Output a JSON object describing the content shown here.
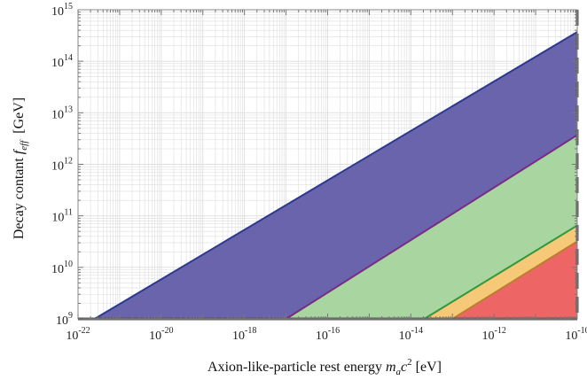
{
  "chart_data": {
    "type": "area",
    "title": "",
    "xlabel": {
      "prefix": "Axion-like-particle rest energy ",
      "symbol": "m",
      "symbol_sub": "a",
      "symbol_tail": "c",
      "symbol_sup": "2",
      "unit": " [eV]"
    },
    "ylabel": {
      "prefix": "Decay contant ",
      "symbol": "f",
      "symbol_sub": "eff",
      "unit": "  [GeV]"
    },
    "x_scale": "log",
    "y_scale": "log",
    "xlim": [
      1e-22,
      1e-10
    ],
    "ylim": [
      1000000000.0,
      1000000000000000.0
    ],
    "x_ticks": [
      {
        "base": "10",
        "exp": "-22",
        "value": 1e-22
      },
      {
        "base": "10",
        "exp": "-20",
        "value": 1e-20
      },
      {
        "base": "10",
        "exp": "-18",
        "value": 1e-18
      },
      {
        "base": "10",
        "exp": "-16",
        "value": 1e-16
      },
      {
        "base": "10",
        "exp": "-14",
        "value": 1e-14
      },
      {
        "base": "10",
        "exp": "-12",
        "value": 1e-12
      },
      {
        "base": "10",
        "exp": "-10",
        "value": 1e-10
      }
    ],
    "y_ticks": [
      {
        "base": "10",
        "exp": "9",
        "value": 1000000000.0
      },
      {
        "base": "10",
        "exp": "10",
        "value": 10000000000.0
      },
      {
        "base": "10",
        "exp": "11",
        "value": 100000000000.0
      },
      {
        "base": "10",
        "exp": "12",
        "value": 1000000000000.0
      },
      {
        "base": "10",
        "exp": "13",
        "value": 10000000000000.0
      },
      {
        "base": "10",
        "exp": "14",
        "value": 100000000000000.0
      },
      {
        "base": "10",
        "exp": "15",
        "value": 1000000000000000.0
      }
    ],
    "grid": true,
    "regions": [
      {
        "fill": "#6a64ad",
        "edge": "#2b3a8c",
        "x": [
          2.5e-22,
          1e-10
        ],
        "y": [
          1000000000.0,
          370000000000000.0
        ]
      },
      {
        "fill": "#a8d5a0",
        "edge": "#7a2a8a",
        "x": [
          1e-17,
          1e-10
        ],
        "y": [
          1000000000.0,
          3700000000000.0
        ]
      },
      {
        "fill": "#f6c978",
        "edge": "#2e9940",
        "x": [
          2.1e-14,
          1e-10
        ],
        "y": [
          1000000000.0,
          65000000000.0
        ]
      },
      {
        "fill": "#ee6566",
        "edge": "#b9802b",
        "x": [
          1e-13,
          1e-10
        ],
        "y": [
          1000000000.0,
          32000000000.0
        ]
      }
    ],
    "horizontal_line": {
      "y": 1000000000.0,
      "color": "#555555"
    },
    "vertical_dashed_line": {
      "x": 1e-10,
      "color": "#555555"
    }
  }
}
